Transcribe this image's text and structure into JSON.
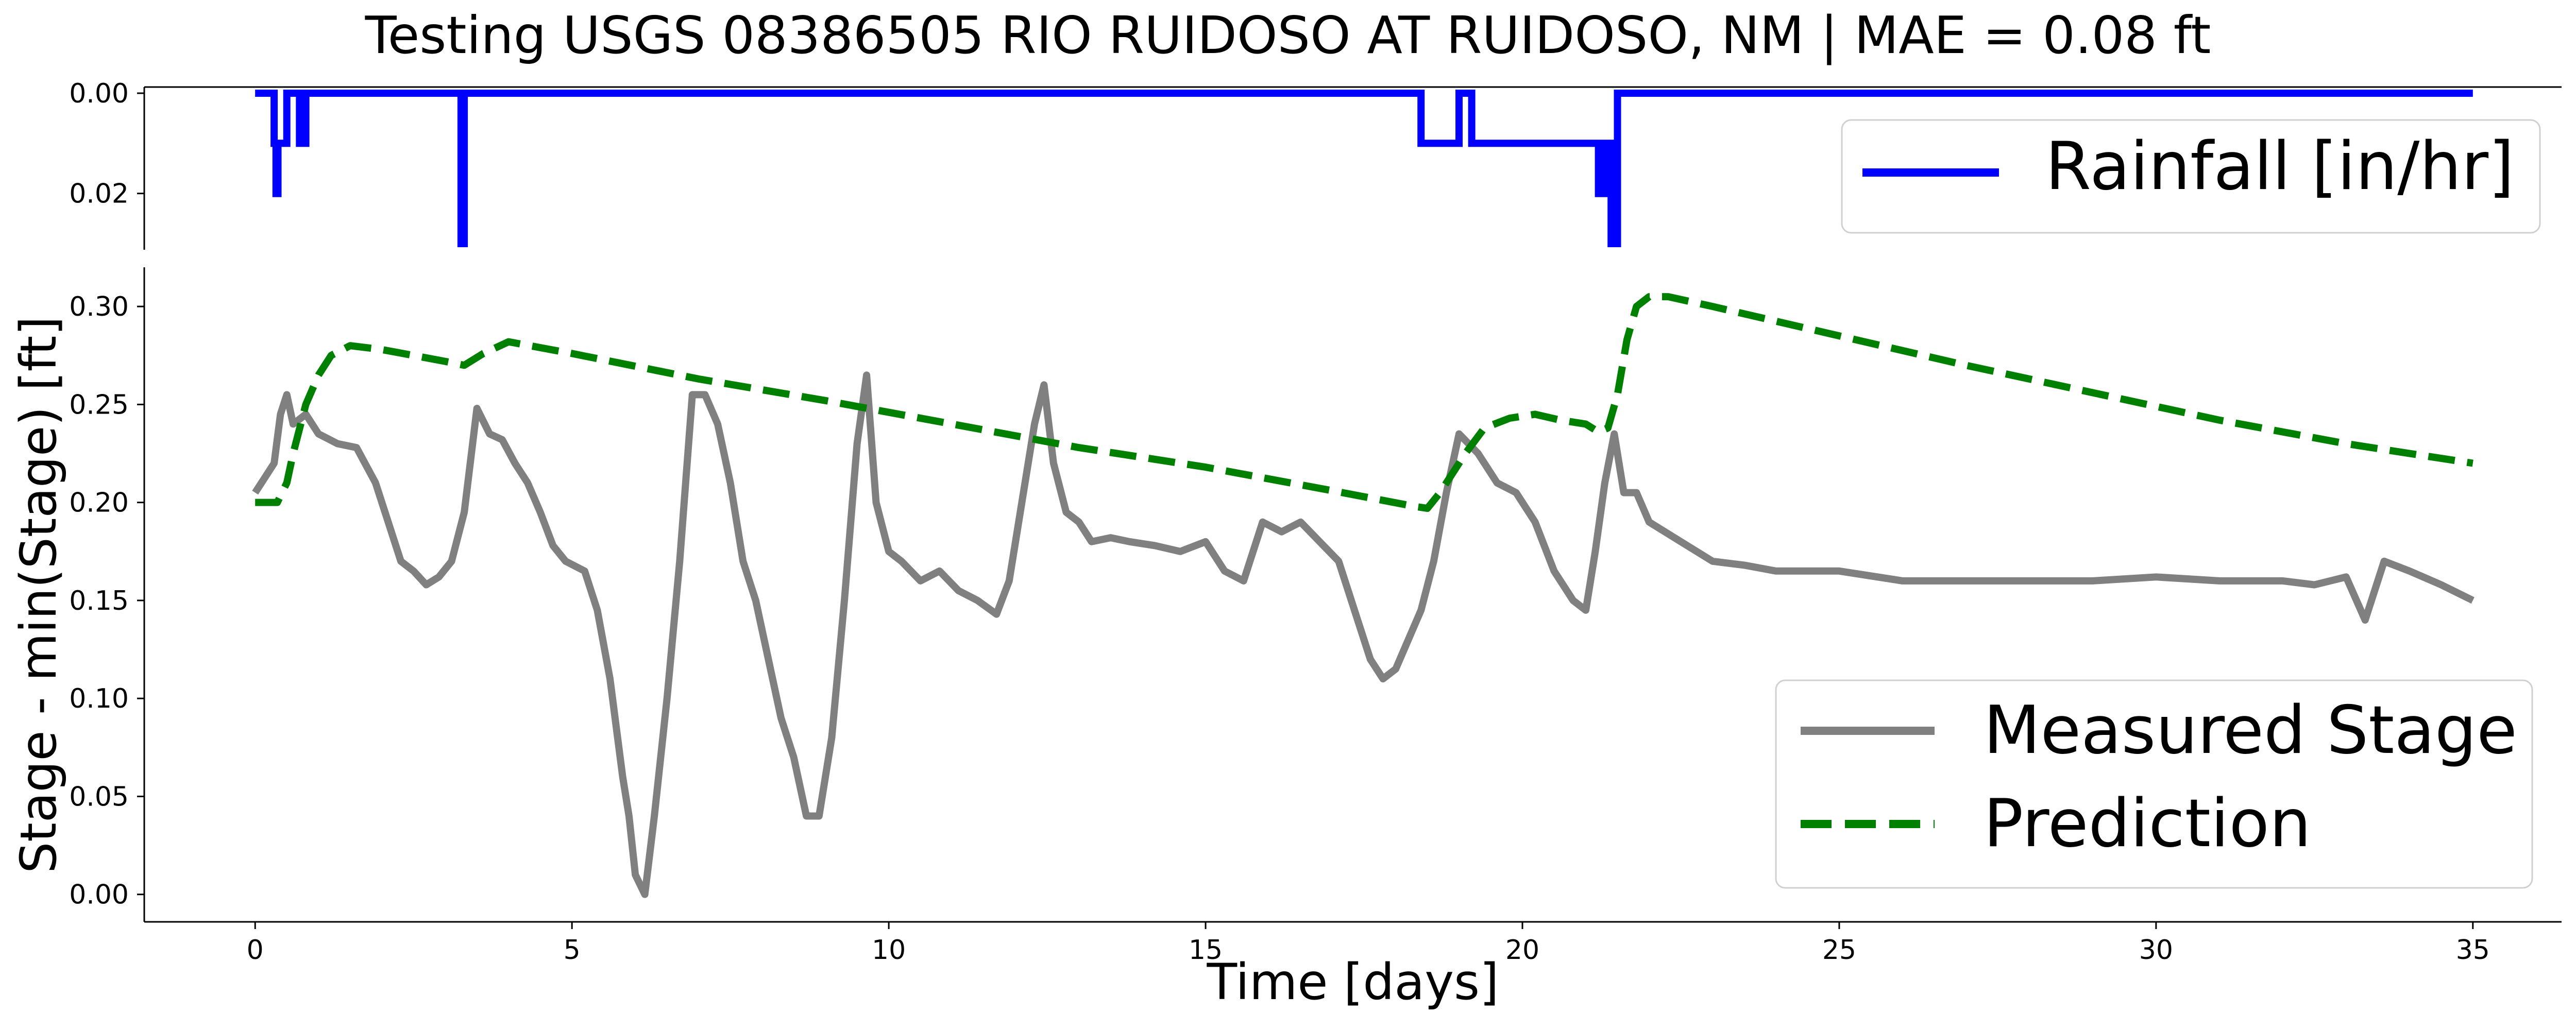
{
  "chart_data": [
    {
      "type": "line",
      "title": "Testing USGS 08386505 RIO RUIDOSO AT RUIDOSO, NM | MAE = 0.08 ft",
      "xlabel": "",
      "ylabel": "",
      "ylim": [
        0.0,
        0.03
      ],
      "y_inverted": true,
      "yticks": [
        0.0,
        0.02
      ],
      "ytick_labels": [
        "0.00",
        "0.02"
      ],
      "xlim": [
        -1.75,
        36.4
      ],
      "grid": false,
      "legend_position": "upper right",
      "series": [
        {
          "name": "Rainfall [in/hr]",
          "color": "#0000ff",
          "style": "solid",
          "x": [
            0,
            0.3,
            0.3,
            0.33,
            0.33,
            0.36,
            0.36,
            0.4,
            0.4,
            0.45,
            0.45,
            0.5,
            0.5,
            0.7,
            0.7,
            0.8,
            0.8,
            3.25,
            3.25,
            3.3,
            3.3,
            18.4,
            18.4,
            18.5,
            18.5,
            18.6,
            18.6,
            18.7,
            18.7,
            18.8,
            18.8,
            18.95,
            18.95,
            19.0,
            19.0,
            19.2,
            19.2,
            21.2,
            21.2,
            21.3,
            21.3,
            21.4,
            21.4,
            21.5,
            21.5,
            35
          ],
          "values": [
            0,
            0,
            0.01,
            0.01,
            0.02,
            0.02,
            0.01,
            0.01,
            0.01,
            0.01,
            0.01,
            0.01,
            0,
            0,
            0.01,
            0.01,
            0,
            0,
            0.03,
            0.03,
            0,
            0,
            0.01,
            0.01,
            0.01,
            0.01,
            0.01,
            0.01,
            0.01,
            0.01,
            0.01,
            0.01,
            0.01,
            0.01,
            0,
            0,
            0.01,
            0.01,
            0.02,
            0.02,
            0.01,
            0.01,
            0.03,
            0.03,
            0,
            0
          ]
        }
      ]
    },
    {
      "type": "line",
      "title": "",
      "xlabel": "Time [days]",
      "ylabel": "Stage - min(Stage) [ft]",
      "xlim": [
        -1.75,
        36.4
      ],
      "ylim": [
        -0.014,
        0.32
      ],
      "xticks": [
        0,
        5,
        10,
        15,
        20,
        25,
        30,
        35
      ],
      "xtick_labels": [
        "0",
        "5",
        "10",
        "15",
        "20",
        "25",
        "30",
        "35"
      ],
      "yticks": [
        0.0,
        0.05,
        0.1,
        0.15,
        0.2,
        0.25,
        0.3
      ],
      "ytick_labels": [
        "0.00",
        "0.05",
        "0.10",
        "0.15",
        "0.20",
        "0.25",
        "0.30"
      ],
      "grid": false,
      "legend_position": "lower right",
      "series": [
        {
          "name": "Measured Stage",
          "color": "#808080",
          "style": "solid",
          "x": [
            0,
            0.1,
            0.2,
            0.3,
            0.4,
            0.5,
            0.6,
            0.8,
            1.0,
            1.3,
            1.6,
            1.9,
            2.1,
            2.3,
            2.5,
            2.7,
            2.9,
            3.1,
            3.3,
            3.5,
            3.7,
            3.9,
            4.1,
            4.3,
            4.5,
            4.7,
            4.9,
            5.2,
            5.4,
            5.6,
            5.8,
            5.9,
            6.0,
            6.15,
            6.3,
            6.5,
            6.7,
            6.9,
            7.1,
            7.3,
            7.5,
            7.7,
            7.9,
            8.1,
            8.3,
            8.5,
            8.7,
            8.9,
            9.1,
            9.3,
            9.5,
            9.65,
            9.8,
            10.0,
            10.2,
            10.5,
            10.8,
            11.1,
            11.4,
            11.7,
            11.9,
            12.1,
            12.3,
            12.45,
            12.6,
            12.8,
            13.0,
            13.2,
            13.5,
            13.8,
            14.2,
            14.6,
            15.0,
            15.3,
            15.6,
            15.9,
            16.2,
            16.5,
            16.8,
            17.1,
            17.4,
            17.6,
            17.8,
            18.0,
            18.2,
            18.4,
            18.6,
            18.8,
            19.0,
            19.3,
            19.6,
            19.9,
            20.2,
            20.5,
            20.8,
            21.0,
            21.15,
            21.3,
            21.45,
            21.6,
            21.8,
            22.0,
            22.5,
            23.0,
            23.5,
            24.0,
            25.0,
            26.0,
            27.0,
            28.0,
            29.0,
            30.0,
            31.0,
            32.0,
            32.5,
            33.0,
            33.3,
            33.6,
            34.0,
            34.5,
            35.0
          ],
          "values": [
            0.205,
            0.21,
            0.215,
            0.22,
            0.245,
            0.255,
            0.24,
            0.245,
            0.235,
            0.23,
            0.228,
            0.21,
            0.19,
            0.17,
            0.165,
            0.158,
            0.162,
            0.17,
            0.195,
            0.248,
            0.235,
            0.232,
            0.22,
            0.21,
            0.195,
            0.178,
            0.17,
            0.165,
            0.145,
            0.11,
            0.06,
            0.04,
            0.01,
            0.0,
            0.04,
            0.1,
            0.17,
            0.255,
            0.255,
            0.24,
            0.21,
            0.17,
            0.15,
            0.12,
            0.09,
            0.07,
            0.04,
            0.04,
            0.08,
            0.15,
            0.23,
            0.265,
            0.2,
            0.175,
            0.17,
            0.16,
            0.165,
            0.155,
            0.15,
            0.143,
            0.16,
            0.2,
            0.24,
            0.26,
            0.22,
            0.195,
            0.19,
            0.18,
            0.182,
            0.18,
            0.178,
            0.175,
            0.18,
            0.165,
            0.16,
            0.19,
            0.185,
            0.19,
            0.18,
            0.17,
            0.14,
            0.12,
            0.11,
            0.115,
            0.13,
            0.145,
            0.17,
            0.205,
            0.235,
            0.225,
            0.21,
            0.205,
            0.19,
            0.165,
            0.15,
            0.145,
            0.175,
            0.21,
            0.235,
            0.205,
            0.205,
            0.19,
            0.18,
            0.17,
            0.168,
            0.165,
            0.165,
            0.16,
            0.16,
            0.16,
            0.16,
            0.162,
            0.16,
            0.16,
            0.158,
            0.162,
            0.14,
            0.17,
            0.165,
            0.158,
            0.15
          ]
        },
        {
          "name": "Prediction",
          "color": "#008000",
          "style": "dashed",
          "x": [
            0,
            0.15,
            0.35,
            0.5,
            0.6,
            0.8,
            1.0,
            1.2,
            1.5,
            2.0,
            2.5,
            3.0,
            3.3,
            3.6,
            4.0,
            5.0,
            7.0,
            9.0,
            11.0,
            13.0,
            15.0,
            17.0,
            18.3,
            18.5,
            18.7,
            18.9,
            19.1,
            19.4,
            19.8,
            20.2,
            20.6,
            21.0,
            21.2,
            21.35,
            21.5,
            21.65,
            21.8,
            22.0,
            22.3,
            23.0,
            25.0,
            27.0,
            29.0,
            31.0,
            33.0,
            35.0
          ],
          "values": [
            0.2,
            0.2,
            0.2,
            0.21,
            0.225,
            0.25,
            0.265,
            0.275,
            0.28,
            0.278,
            0.275,
            0.272,
            0.27,
            0.276,
            0.282,
            0.276,
            0.263,
            0.252,
            0.24,
            0.228,
            0.218,
            0.206,
            0.198,
            0.197,
            0.205,
            0.215,
            0.225,
            0.238,
            0.243,
            0.245,
            0.242,
            0.24,
            0.236,
            0.238,
            0.255,
            0.283,
            0.3,
            0.305,
            0.305,
            0.3,
            0.285,
            0.27,
            0.256,
            0.242,
            0.23,
            0.22
          ]
        }
      ]
    }
  ]
}
